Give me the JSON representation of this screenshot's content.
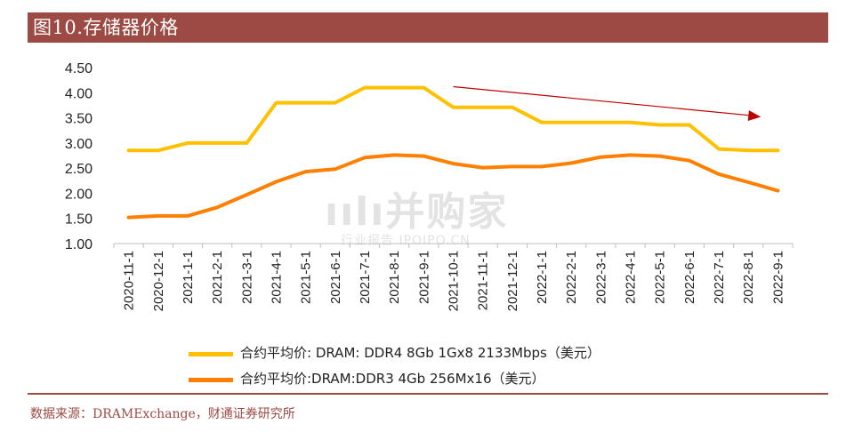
{
  "header": {
    "title": "图10.存储器价格"
  },
  "chart_data": {
    "type": "line",
    "categories": [
      "2020-11-1",
      "2020-12-1",
      "2021-1-1",
      "2021-2-1",
      "2021-3-1",
      "2021-4-1",
      "2021-5-1",
      "2021-6-1",
      "2021-7-1",
      "2021-8-1",
      "2021-9-1",
      "2021-10-1",
      "2021-11-1",
      "2021-12-1",
      "2022-1-1",
      "2022-2-1",
      "2022-3-1",
      "2022-4-1",
      "2022-5-1",
      "2022-6-1",
      "2022-7-1",
      "2022-8-1",
      "2022-9-1"
    ],
    "ylim": [
      1.0,
      4.5
    ],
    "yticks": [
      "1.00",
      "1.50",
      "2.00",
      "2.50",
      "3.00",
      "3.50",
      "4.00",
      "4.50"
    ],
    "grid": false,
    "legend_position": "bottom",
    "series": [
      {
        "name": "合约平均价: DRAM: DDR4 8Gb 1Gx8 2133Mbps（美元）",
        "color": "#ffc000",
        "values": [
          2.85,
          2.85,
          3.0,
          3.0,
          3.0,
          3.8,
          3.8,
          3.8,
          4.1,
          4.1,
          4.1,
          3.71,
          3.71,
          3.71,
          3.41,
          3.41,
          3.41,
          3.41,
          3.36,
          3.36,
          2.88,
          2.85,
          2.85
        ]
      },
      {
        "name": "合约平均价:DRAM:DDR3 4Gb 256Mx16（美元）",
        "color": "#ff7f00",
        "values": [
          1.52,
          1.55,
          1.55,
          1.72,
          1.97,
          2.23,
          2.43,
          2.48,
          2.71,
          2.76,
          2.74,
          2.59,
          2.51,
          2.53,
          2.53,
          2.6,
          2.72,
          2.76,
          2.74,
          2.65,
          2.38,
          2.22,
          2.05
        ]
      }
    ],
    "annotations": [
      {
        "type": "arrow",
        "color": "#c00000",
        "from": [
          "2021-10-1",
          4.12
        ],
        "to": [
          "2022-8-1",
          3.52
        ]
      }
    ]
  },
  "watermark": {
    "main": "ıılı并购家",
    "sub": "行业报告 IPOIPO.CN"
  },
  "footer": {
    "source": "数据来源：DRAMExchange，财通证券研究所"
  }
}
